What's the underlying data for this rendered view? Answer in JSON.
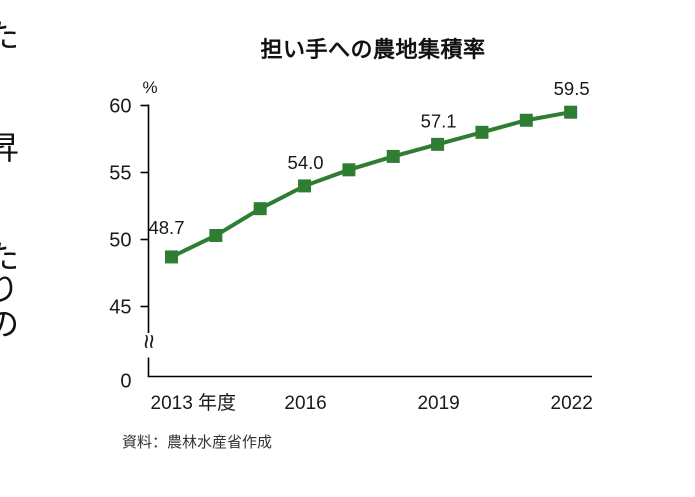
{
  "left_text_fragments": [
    "た",
    "昇",
    "た",
    "り",
    "の"
  ],
  "chart_data": {
    "type": "line",
    "title": "担い手への農地集積率",
    "unit_label": "%",
    "x": [
      2013,
      2014,
      2015,
      2016,
      2017,
      2018,
      2019,
      2020,
      2021,
      2022
    ],
    "values": [
      48.7,
      50.3,
      52.3,
      54.0,
      55.2,
      56.2,
      57.1,
      58.0,
      58.9,
      59.5
    ],
    "labeled_points": {
      "2013": "48.7",
      "2016": "54.0",
      "2019": "57.1",
      "2022": "59.5"
    },
    "x_tick_labels": [
      "2013 年度",
      "2016",
      "2019",
      "2022"
    ],
    "x_tick_years": [
      2013,
      2016,
      2019,
      2022
    ],
    "y_ticks": [
      60,
      55,
      50,
      45,
      0
    ],
    "y_axis_break": true,
    "ylim_visible": [
      45,
      60
    ],
    "line_color": "#2e7d32",
    "marker": "square",
    "source": "資料：農林水産省作成"
  }
}
